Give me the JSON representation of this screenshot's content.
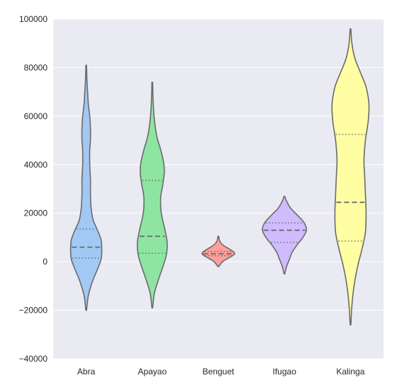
{
  "chart_data": {
    "type": "violin",
    "title": "",
    "xlabel": "",
    "ylabel": "",
    "ylim": [
      -40000,
      100000
    ],
    "yticks": [
      -40000,
      -20000,
      0,
      20000,
      40000,
      60000,
      80000,
      100000
    ],
    "ytick_labels": [
      "−40000",
      "−20000",
      "0",
      "20000",
      "40000",
      "60000",
      "80000",
      "100000"
    ],
    "grid": true,
    "categories": [
      "Abra",
      "Apayao",
      "Benguet",
      "Ifugao",
      "Kalinga"
    ],
    "colors": {
      "background": "#eaeaf2",
      "grid": "#ffffff",
      "outline": "#6b6b6b",
      "violins": [
        "#a1c9f4",
        "#8de5a1",
        "#ff9f9b",
        "#d0bbff",
        "#fffea3"
      ]
    },
    "violins": [
      {
        "name": "Abra",
        "q1": 1500,
        "median": 6000,
        "q3": 13500,
        "min": -20000,
        "max": 81000,
        "profile": [
          [
            -20000,
            0.5
          ],
          [
            -14000,
            3
          ],
          [
            -8000,
            9
          ],
          [
            -3000,
            16
          ],
          [
            1000,
            21
          ],
          [
            5000,
            22
          ],
          [
            9000,
            21
          ],
          [
            13000,
            16
          ],
          [
            17000,
            10
          ],
          [
            22000,
            7
          ],
          [
            28000,
            6
          ],
          [
            34000,
            6
          ],
          [
            40000,
            5
          ],
          [
            46000,
            5
          ],
          [
            50000,
            6
          ],
          [
            55000,
            6
          ],
          [
            60000,
            5
          ],
          [
            65000,
            3
          ],
          [
            70000,
            2
          ],
          [
            75000,
            1
          ],
          [
            81000,
            0.5
          ]
        ]
      },
      {
        "name": "Apayao",
        "q1": 3500,
        "median": 10500,
        "q3": 33500,
        "min": -19000,
        "max": 74000,
        "profile": [
          [
            -19000,
            0.5
          ],
          [
            -13000,
            3
          ],
          [
            -8000,
            8
          ],
          [
            -2000,
            15
          ],
          [
            3000,
            20
          ],
          [
            8000,
            21
          ],
          [
            13000,
            18
          ],
          [
            18000,
            14
          ],
          [
            22000,
            12
          ],
          [
            27000,
            12
          ],
          [
            32000,
            15
          ],
          [
            37000,
            17
          ],
          [
            41000,
            16
          ],
          [
            46000,
            12
          ],
          [
            51000,
            7
          ],
          [
            56000,
            4
          ],
          [
            62000,
            2
          ],
          [
            68000,
            1
          ],
          [
            74000,
            0.5
          ]
        ]
      },
      {
        "name": "Benguet",
        "q1": 2500,
        "median": 3300,
        "q3": 4200,
        "min": -2000,
        "max": 10500,
        "profile": [
          [
            -2000,
            0.5
          ],
          [
            0,
            6
          ],
          [
            1500,
            14
          ],
          [
            2500,
            20
          ],
          [
            3300,
            23
          ],
          [
            4200,
            21
          ],
          [
            5500,
            14
          ],
          [
            7000,
            6
          ],
          [
            8500,
            2
          ],
          [
            10500,
            0.5
          ]
        ]
      },
      {
        "name": "Ifugao",
        "q1": 8000,
        "median": 13000,
        "q3": 16000,
        "min": -5000,
        "max": 27000,
        "profile": [
          [
            -5000,
            0.5
          ],
          [
            -2000,
            3
          ],
          [
            1000,
            7
          ],
          [
            4000,
            11
          ],
          [
            7000,
            18
          ],
          [
            10000,
            26
          ],
          [
            13000,
            31
          ],
          [
            16000,
            28
          ],
          [
            19000,
            19
          ],
          [
            22000,
            9
          ],
          [
            25000,
            3
          ],
          [
            27000,
            0.5
          ]
        ]
      },
      {
        "name": "Kalinga",
        "q1": 8500,
        "median": 24500,
        "q3": 52500,
        "min": -26000,
        "max": 96000,
        "profile": [
          [
            -26000,
            0.5
          ],
          [
            -18000,
            2
          ],
          [
            -10000,
            5
          ],
          [
            -2000,
            10
          ],
          [
            5000,
            16
          ],
          [
            12000,
            21
          ],
          [
            20000,
            22
          ],
          [
            28000,
            21
          ],
          [
            35000,
            20
          ],
          [
            42000,
            19
          ],
          [
            50000,
            21
          ],
          [
            58000,
            25
          ],
          [
            65000,
            26
          ],
          [
            72000,
            22
          ],
          [
            78000,
            14
          ],
          [
            84000,
            6
          ],
          [
            90000,
            2
          ],
          [
            96000,
            0.5
          ]
        ]
      }
    ]
  }
}
